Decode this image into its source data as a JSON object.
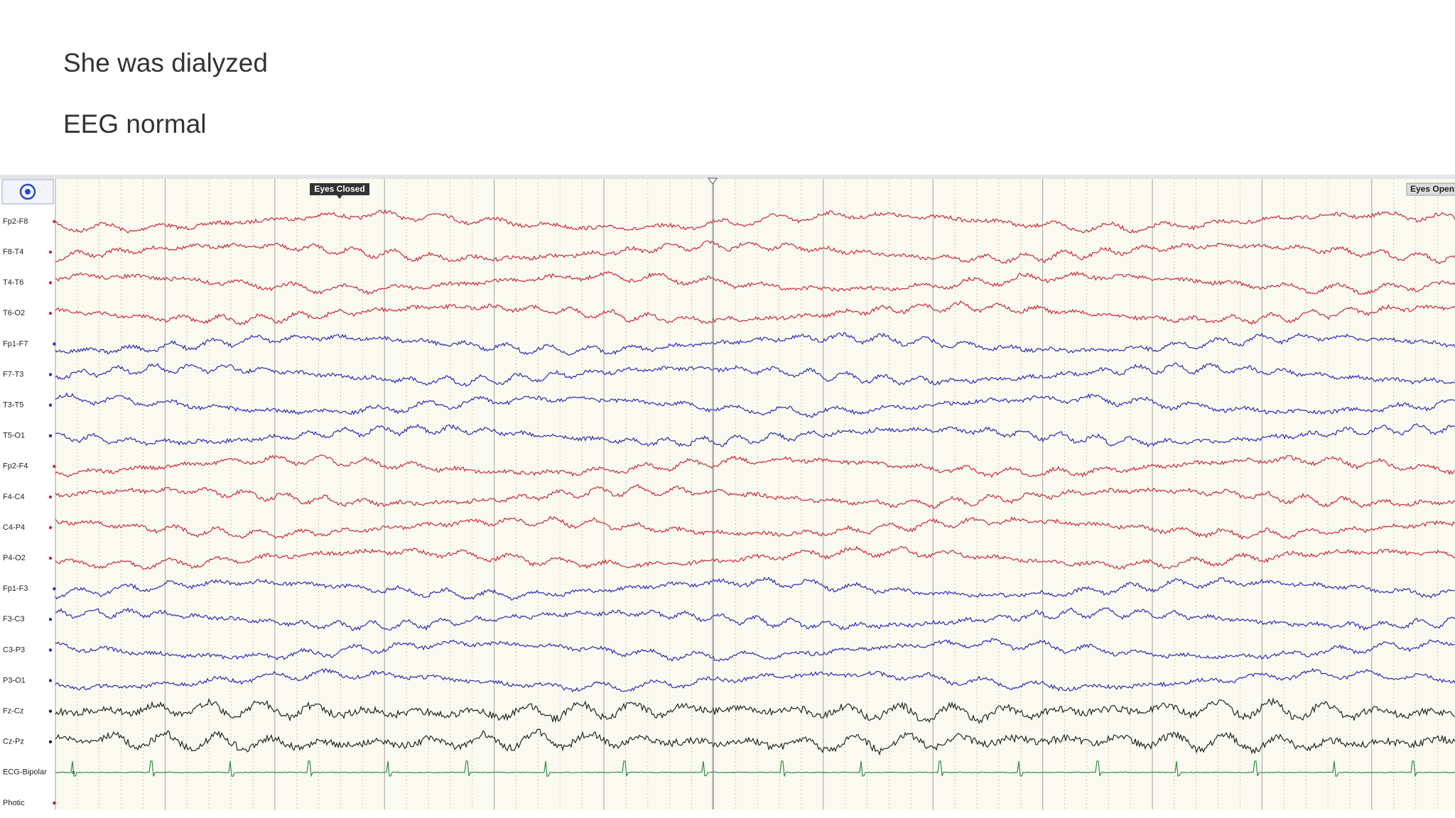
{
  "slide": {
    "lines": [
      "She was dialyzed",
      "EEG normal"
    ]
  },
  "eeg": {
    "annotations": [
      "Eyes Closed",
      "Eyes Open"
    ],
    "channels": [
      {
        "label": "Fp2-F8",
        "color": "#c8283a"
      },
      {
        "label": "F8-T4",
        "color": "#c8283a"
      },
      {
        "label": "T4-T6",
        "color": "#c8283a"
      },
      {
        "label": "T6-O2",
        "color": "#c8283a"
      },
      {
        "label": "Fp1-F7",
        "color": "#2a2ab4"
      },
      {
        "label": "F7-T3",
        "color": "#2a2ab4"
      },
      {
        "label": "T3-T5",
        "color": "#2a2ab4"
      },
      {
        "label": "T5-O1",
        "color": "#2a2ab4"
      },
      {
        "label": "Fp2-F4",
        "color": "#c8283a"
      },
      {
        "label": "F4-C4",
        "color": "#c8283a"
      },
      {
        "label": "C4-P4",
        "color": "#c8283a"
      },
      {
        "label": "P4-O2",
        "color": "#c8283a"
      },
      {
        "label": "Fp1-F3",
        "color": "#2a2ab4"
      },
      {
        "label": "F3-C3",
        "color": "#2a2ab4"
      },
      {
        "label": "C3-P3",
        "color": "#2a2ab4"
      },
      {
        "label": "P3-O1",
        "color": "#2a2ab4"
      },
      {
        "label": "Fz-Cz",
        "color": "#222222"
      },
      {
        "label": "Cz-Pz",
        "color": "#222222"
      },
      {
        "label": "ECG-Bipolar",
        "color": "#2e8b4a"
      },
      {
        "label": "Photic",
        "color": "#d01020"
      }
    ]
  }
}
